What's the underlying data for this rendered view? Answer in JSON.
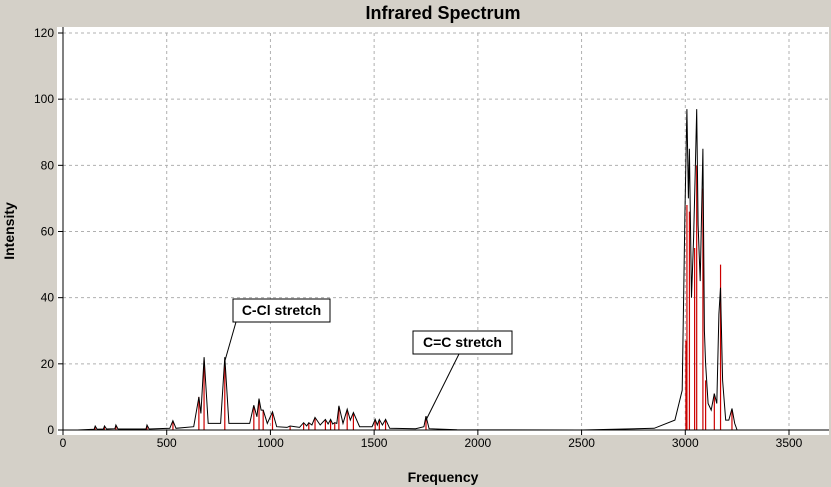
{
  "chart_data": {
    "type": "line",
    "title": "Infrared Spectrum",
    "xlabel": "Frequency",
    "ylabel": "Intensity",
    "xlim": [
      0,
      3500
    ],
    "ylim": [
      0,
      120
    ],
    "x_ticks": [
      0,
      500,
      1000,
      1500,
      2000,
      2500,
      3000,
      3500
    ],
    "y_ticks": [
      0,
      20,
      40,
      60,
      80,
      100,
      120
    ],
    "grid": true,
    "colors": {
      "plot_background": "#ffffff",
      "window_background": "#d4d0c8",
      "spectrum_line": "#000000",
      "stick_lines": "#cc0000",
      "grid": "#b0b0b0"
    },
    "sticks": [
      {
        "x": 155,
        "y": 1
      },
      {
        "x": 200,
        "y": 1
      },
      {
        "x": 255,
        "y": 1.2
      },
      {
        "x": 405,
        "y": 1.2
      },
      {
        "x": 530,
        "y": 2.5
      },
      {
        "x": 655,
        "y": 10
      },
      {
        "x": 680,
        "y": 21
      },
      {
        "x": 780,
        "y": 21
      },
      {
        "x": 920,
        "y": 7
      },
      {
        "x": 945,
        "y": 9
      },
      {
        "x": 965,
        "y": 6
      },
      {
        "x": 1010,
        "y": 5
      },
      {
        "x": 1095,
        "y": 1
      },
      {
        "x": 1160,
        "y": 2
      },
      {
        "x": 1185,
        "y": 2
      },
      {
        "x": 1215,
        "y": 3.5
      },
      {
        "x": 1265,
        "y": 3
      },
      {
        "x": 1290,
        "y": 3
      },
      {
        "x": 1310,
        "y": 2
      },
      {
        "x": 1330,
        "y": 7
      },
      {
        "x": 1370,
        "y": 6
      },
      {
        "x": 1400,
        "y": 5
      },
      {
        "x": 1505,
        "y": 3
      },
      {
        "x": 1525,
        "y": 3
      },
      {
        "x": 1555,
        "y": 3
      },
      {
        "x": 1750,
        "y": 4
      },
      {
        "x": 3003,
        "y": 27
      },
      {
        "x": 3008,
        "y": 68
      },
      {
        "x": 3020,
        "y": 66
      },
      {
        "x": 3045,
        "y": 55
      },
      {
        "x": 3055,
        "y": 80
      },
      {
        "x": 3085,
        "y": 73
      },
      {
        "x": 3098,
        "y": 15
      },
      {
        "x": 3140,
        "y": 11
      },
      {
        "x": 3170,
        "y": 50
      },
      {
        "x": 3225,
        "y": 6
      }
    ],
    "envelope": [
      [
        70,
        0
      ],
      [
        150,
        0.2
      ],
      [
        155,
        1.2
      ],
      [
        165,
        0.2
      ],
      [
        195,
        0.3
      ],
      [
        200,
        1.2
      ],
      [
        210,
        0.3
      ],
      [
        250,
        0.4
      ],
      [
        255,
        1.5
      ],
      [
        265,
        0.3
      ],
      [
        400,
        0.3
      ],
      [
        405,
        1.5
      ],
      [
        415,
        0.3
      ],
      [
        515,
        0.5
      ],
      [
        530,
        2.8
      ],
      [
        545,
        0.5
      ],
      [
        630,
        1
      ],
      [
        655,
        10
      ],
      [
        665,
        5
      ],
      [
        680,
        22
      ],
      [
        700,
        2
      ],
      [
        760,
        2
      ],
      [
        780,
        22
      ],
      [
        800,
        2
      ],
      [
        900,
        2
      ],
      [
        920,
        7.5
      ],
      [
        935,
        4
      ],
      [
        945,
        9.5
      ],
      [
        955,
        6
      ],
      [
        965,
        6
      ],
      [
        985,
        2
      ],
      [
        1010,
        5.5
      ],
      [
        1030,
        1
      ],
      [
        1080,
        0.8
      ],
      [
        1095,
        1.2
      ],
      [
        1140,
        0.8
      ],
      [
        1160,
        2.2
      ],
      [
        1175,
        1.2
      ],
      [
        1185,
        2.2
      ],
      [
        1200,
        1.5
      ],
      [
        1215,
        3.8
      ],
      [
        1240,
        1.5
      ],
      [
        1265,
        3.2
      ],
      [
        1278,
        1.8
      ],
      [
        1290,
        3.2
      ],
      [
        1300,
        1.8
      ],
      [
        1310,
        2.2
      ],
      [
        1320,
        2
      ],
      [
        1330,
        7.3
      ],
      [
        1350,
        2
      ],
      [
        1370,
        6.3
      ],
      [
        1385,
        3
      ],
      [
        1400,
        5.3
      ],
      [
        1430,
        1
      ],
      [
        1490,
        1
      ],
      [
        1505,
        3.2
      ],
      [
        1515,
        1.5
      ],
      [
        1525,
        3.2
      ],
      [
        1540,
        1.5
      ],
      [
        1555,
        3.2
      ],
      [
        1575,
        0.5
      ],
      [
        1700,
        0.4
      ],
      [
        1740,
        1
      ],
      [
        1750,
        4.2
      ],
      [
        1765,
        0.4
      ],
      [
        1900,
        0.1
      ],
      [
        2500,
        0
      ],
      [
        2850,
        0.5
      ],
      [
        2950,
        3
      ],
      [
        2985,
        12
      ],
      [
        2998,
        65
      ],
      [
        3008,
        97
      ],
      [
        3015,
        70
      ],
      [
        3020,
        85
      ],
      [
        3030,
        40
      ],
      [
        3040,
        58
      ],
      [
        3047,
        75
      ],
      [
        3055,
        97
      ],
      [
        3062,
        62
      ],
      [
        3072,
        45
      ],
      [
        3085,
        85
      ],
      [
        3092,
        30
      ],
      [
        3098,
        20
      ],
      [
        3110,
        8
      ],
      [
        3125,
        6
      ],
      [
        3140,
        11
      ],
      [
        3152,
        8
      ],
      [
        3162,
        35
      ],
      [
        3170,
        43
      ],
      [
        3180,
        15
      ],
      [
        3195,
        3
      ],
      [
        3210,
        3
      ],
      [
        3225,
        6.5
      ],
      [
        3238,
        2
      ],
      [
        3250,
        0
      ]
    ],
    "annotations": [
      {
        "label": "C-Cl stretch",
        "x": 780,
        "y": 22
      },
      {
        "label": "C=C stretch",
        "x": 1750,
        "y": 4.2
      }
    ]
  }
}
